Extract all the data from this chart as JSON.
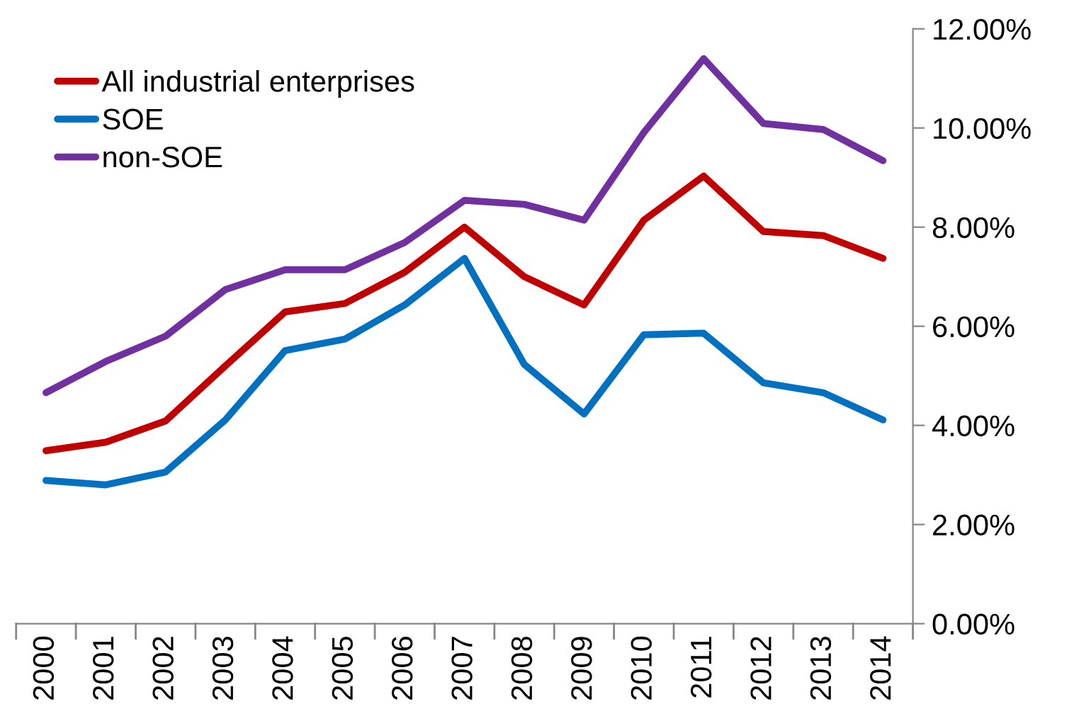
{
  "chart_data": {
    "type": "line",
    "categories": [
      "2000",
      "2001",
      "2002",
      "2003",
      "2004",
      "2005",
      "2006",
      "2007",
      "2008",
      "2009",
      "2010",
      "2011",
      "2012",
      "2013",
      "2014"
    ],
    "series": [
      {
        "name": "All industrial enterprises",
        "color": "#c00000",
        "values": [
          3.49,
          3.66,
          4.09,
          5.2,
          6.29,
          6.46,
          7.09,
          8.0,
          7.0,
          6.43,
          8.14,
          9.03,
          7.91,
          7.83,
          7.37
        ]
      },
      {
        "name": "SOE",
        "color": "#0070c0",
        "values": [
          2.89,
          2.8,
          3.06,
          4.11,
          5.51,
          5.74,
          6.43,
          7.37,
          5.23,
          4.23,
          5.83,
          5.86,
          4.86,
          4.66,
          4.11
        ]
      },
      {
        "name": "non-SOE",
        "color": "#7030a0",
        "values": [
          4.66,
          5.29,
          5.8,
          6.74,
          7.14,
          7.14,
          7.69,
          8.54,
          8.46,
          8.14,
          9.91,
          11.4,
          10.09,
          9.97,
          9.34
        ]
      }
    ],
    "ylim": [
      0,
      12
    ],
    "yticks": [
      {
        "value": 0,
        "label": "0.00%"
      },
      {
        "value": 2,
        "label": "2.00%"
      },
      {
        "value": 4,
        "label": "4.00%"
      },
      {
        "value": 6,
        "label": "6.00%"
      },
      {
        "value": 8,
        "label": "8.00%"
      },
      {
        "value": 10,
        "label": "10.00%"
      },
      {
        "value": 12,
        "label": "12.00%"
      }
    ],
    "grid": false,
    "legend": "top left",
    "marker": "none",
    "line_style": "solid"
  }
}
